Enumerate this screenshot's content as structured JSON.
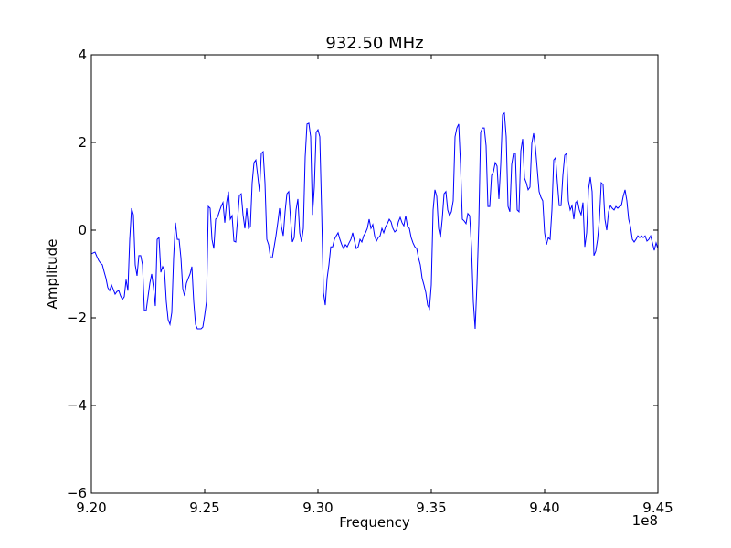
{
  "chart_data": {
    "type": "line",
    "title": "932.50 MHz",
    "xlabel": "Frequency",
    "ylabel": "Amplitude",
    "x_offset_label": "1e8",
    "xlim": [
      920000000,
      945000000
    ],
    "ylim": [
      -6,
      4
    ],
    "x_ticks": [
      920000000,
      925000000,
      930000000,
      935000000,
      940000000,
      945000000
    ],
    "x_tick_labels": [
      "9.20",
      "9.25",
      "9.30",
      "9.35",
      "9.40",
      "9.45"
    ],
    "y_ticks": [
      4,
      2,
      0,
      -2,
      -4,
      -6
    ],
    "y_tick_labels": [
      "4",
      "2",
      "0",
      "−2",
      "−4",
      "−6"
    ],
    "grid": false,
    "series": [
      {
        "name": "amplitude",
        "color": "#0000ff",
        "x_start": 920000000,
        "x_end": 945000000,
        "values": [
          -0.54,
          -0.52,
          -0.5,
          -0.6,
          -0.69,
          -0.75,
          -0.79,
          -0.95,
          -1.1,
          -1.31,
          -1.38,
          -1.25,
          -1.35,
          -1.46,
          -1.4,
          -1.38,
          -1.5,
          -1.58,
          -1.52,
          -1.13,
          -1.38,
          -0.21,
          0.5,
          0.35,
          -0.79,
          -1.04,
          -0.58,
          -0.58,
          -0.79,
          -1.83,
          -1.83,
          -1.52,
          -1.21,
          -1.0,
          -1.31,
          -1.73,
          -0.21,
          -0.17,
          -0.96,
          -0.83,
          -0.92,
          -1.63,
          -2.04,
          -2.15,
          -1.88,
          -0.63,
          0.17,
          -0.21,
          -0.21,
          -0.63,
          -1.33,
          -1.5,
          -1.21,
          -1.1,
          -1.0,
          -0.83,
          -1.63,
          -2.15,
          -2.25,
          -2.25,
          -2.25,
          -2.21,
          -1.94,
          -1.63,
          0.54,
          0.5,
          -0.21,
          -0.42,
          0.25,
          0.29,
          0.42,
          0.54,
          0.63,
          0.17,
          0.63,
          0.88,
          0.25,
          0.33,
          -0.25,
          -0.27,
          0.25,
          0.79,
          0.83,
          0.35,
          0.04,
          0.5,
          0.04,
          0.08,
          1.08,
          1.54,
          1.6,
          1.25,
          0.88,
          1.75,
          1.79,
          1.08,
          -0.21,
          -0.33,
          -0.63,
          -0.63,
          -0.38,
          -0.13,
          0.17,
          0.5,
          0.08,
          -0.13,
          0.42,
          0.83,
          0.88,
          0.25,
          -0.27,
          -0.17,
          0.46,
          0.71,
          -0.06,
          -0.27,
          0.04,
          1.67,
          2.42,
          2.44,
          2.13,
          0.35,
          0.98,
          2.23,
          2.29,
          2.13,
          0.46,
          -1.42,
          -1.71,
          -1.1,
          -0.79,
          -0.38,
          -0.38,
          -0.21,
          -0.13,
          -0.06,
          -0.21,
          -0.33,
          -0.42,
          -0.33,
          -0.38,
          -0.29,
          -0.21,
          -0.06,
          -0.25,
          -0.42,
          -0.38,
          -0.21,
          -0.27,
          -0.13,
          -0.06,
          0.04,
          0.25,
          0.04,
          0.13,
          -0.13,
          -0.25,
          -0.17,
          -0.13,
          0.04,
          -0.06,
          0.08,
          0.15,
          0.25,
          0.19,
          0.04,
          -0.04,
          0,
          0.19,
          0.29,
          0.17,
          0.1,
          0.33,
          0.08,
          0.04,
          -0.17,
          -0.29,
          -0.38,
          -0.42,
          -0.63,
          -0.79,
          -1.1,
          -1.25,
          -1.42,
          -1.71,
          -1.79,
          -1.25,
          0.46,
          0.92,
          0.77,
          0.04,
          -0.17,
          0.25,
          0.83,
          0.88,
          0.46,
          0.33,
          0.42,
          0.67,
          2.13,
          2.33,
          2.42,
          1.5,
          0.25,
          0.21,
          0.15,
          0.38,
          0.33,
          -0.38,
          -1.63,
          -2.25,
          -1.21,
          0.15,
          2.23,
          2.33,
          2.33,
          1.92,
          0.54,
          0.54,
          1.25,
          1.33,
          1.54,
          1.46,
          0.71,
          1.5,
          2.63,
          2.67,
          2.13,
          0.54,
          0.42,
          1.5,
          1.75,
          1.75,
          0.46,
          0.42,
          1.81,
          2.08,
          1.19,
          1.08,
          0.92,
          0.98,
          1.98,
          2.21,
          1.88,
          1.38,
          0.88,
          0.75,
          0.67,
          -0.06,
          -0.33,
          -0.17,
          -0.21,
          0.46,
          1.6,
          1.65,
          1.08,
          0.56,
          0.56,
          1.25,
          1.71,
          1.75,
          0.67,
          0.46,
          0.56,
          0.25,
          0.63,
          0.67,
          0.46,
          0.35,
          0.63,
          -0.38,
          -0.06,
          0.92,
          1.21,
          0.88,
          -0.58,
          -0.48,
          -0.21,
          0.25,
          1.08,
          1.04,
          0.25,
          0,
          0.42,
          0.56,
          0.5,
          0.46,
          0.54,
          0.5,
          0.54,
          0.56,
          0.77,
          0.92,
          0.67,
          0.25,
          0.08,
          -0.21,
          -0.27,
          -0.21,
          -0.13,
          -0.17,
          -0.13,
          -0.17,
          -0.13,
          -0.25,
          -0.21,
          -0.13,
          -0.29,
          -0.46,
          -0.29,
          -0.42
        ]
      }
    ]
  }
}
